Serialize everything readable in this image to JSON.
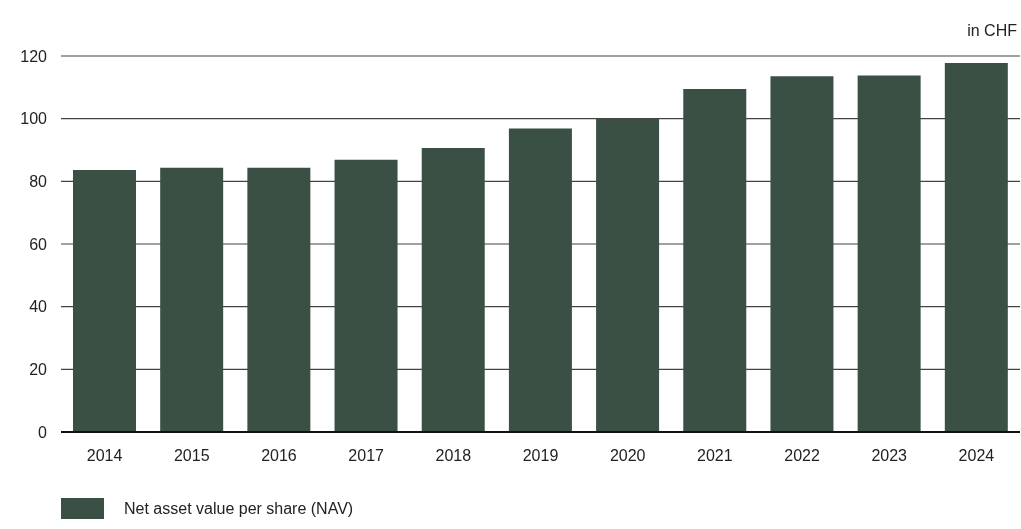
{
  "chart_data": {
    "type": "bar",
    "ylabel": "in CHF",
    "categories": [
      "2014",
      "2015",
      "2016",
      "2017",
      "2018",
      "2019",
      "2020",
      "2021",
      "2022",
      "2023",
      "2024"
    ],
    "series": [
      {
        "name": "Net asset value per share (NAV)",
        "color": "#3a5045",
        "values": [
          83.6,
          84.3,
          84.3,
          86.9,
          90.6,
          96.9,
          100.0,
          109.5,
          113.5,
          113.8,
          117.8
        ]
      }
    ],
    "ylim": [
      0,
      120
    ],
    "yticks": [
      0,
      20,
      40,
      60,
      80,
      100,
      120
    ],
    "grid": "y",
    "legend": "bottom left"
  }
}
